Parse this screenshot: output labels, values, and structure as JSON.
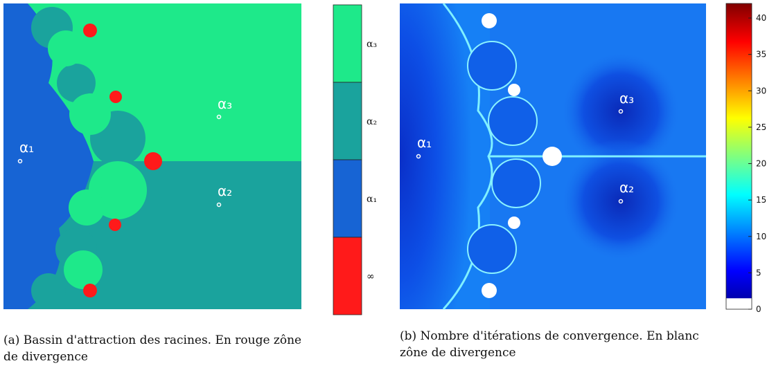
{
  "panel_a": {
    "point_labels": [
      "α₁",
      "α₂",
      "α₃"
    ],
    "legend": {
      "labels": [
        "α₃",
        "α₂",
        "α₁",
        "∞"
      ],
      "colors": [
        "#1ee98a",
        "#1aa39d",
        "#1764d4",
        "#ff1a1a"
      ]
    },
    "caption": [
      "(a) Bassin d'attraction des racines. En rouge zône",
      "de divergence"
    ]
  },
  "panel_b": {
    "point_labels": [
      "α₁",
      "α₂",
      "α₃"
    ],
    "colorbar": {
      "lim": [
        0,
        42
      ],
      "ticks": [
        0,
        5,
        10,
        15,
        20,
        25,
        30,
        35,
        40
      ]
    },
    "caption": [
      "(b) Nombre d'itérations de convergence. En blanc",
      "zône de divergence"
    ]
  }
}
